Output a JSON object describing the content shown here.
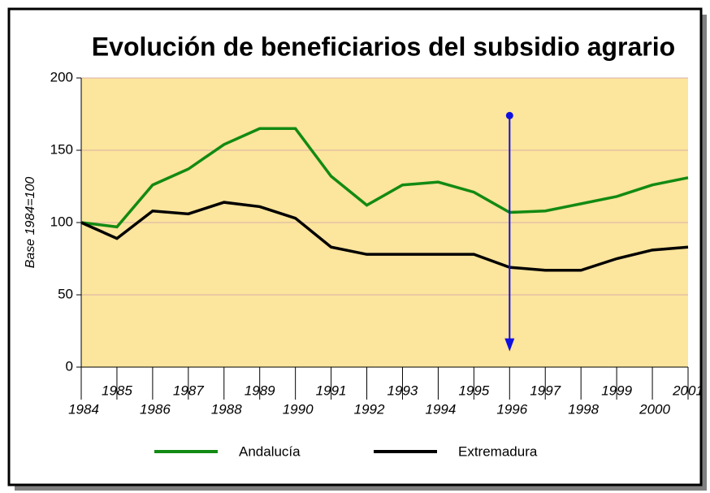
{
  "chart_data": {
    "type": "line",
    "title": "Evolución de beneficiarios del subsidio agrario",
    "y_label": "Base 1984=100",
    "categories": [
      "1984",
      "1985",
      "1986",
      "1987",
      "1988",
      "1989",
      "1990",
      "1991",
      "1992",
      "1993",
      "1994",
      "1995",
      "1996",
      "1997",
      "1998",
      "1999",
      "2000",
      "2001"
    ],
    "series": [
      {
        "name": "Andalucía",
        "color": "#138a13",
        "values": [
          100,
          97,
          126,
          137,
          154,
          165,
          165,
          132,
          112,
          126,
          128,
          121,
          107,
          108,
          113,
          118,
          126,
          131
        ]
      },
      {
        "name": "Extremadura",
        "color": "#000000",
        "values": [
          100,
          89,
          108,
          106,
          114,
          111,
          103,
          83,
          78,
          78,
          78,
          78,
          69,
          67,
          67,
          75,
          81,
          83
        ]
      }
    ],
    "ylim": [
      0,
      200
    ],
    "yticks": [
      0,
      50,
      100,
      150,
      200
    ],
    "grid": true,
    "plot_background": "#fce59c",
    "annotation": {
      "x": "1996",
      "from": 174,
      "to": 12,
      "color": "#1010e0"
    }
  }
}
